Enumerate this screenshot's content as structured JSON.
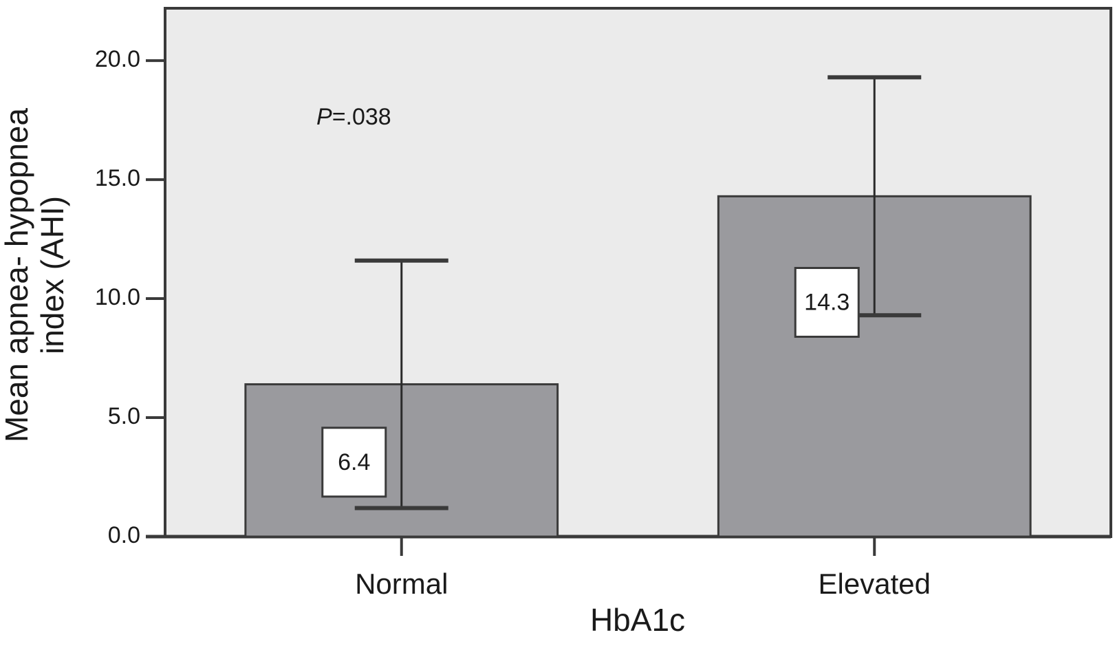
{
  "chart_data": {
    "type": "bar",
    "x_label": "HbA1c",
    "y_label": [
      "Mean apnea- hypopnea",
      "index (AHI)"
    ],
    "annotation": [
      "P",
      "=.038"
    ],
    "categories": [
      "Normal",
      "Elevated"
    ],
    "values": [
      6.4,
      14.3
    ],
    "errors": [
      5.2,
      5.0
    ],
    "color": "#9a9a9e",
    "ylim": [
      0,
      22.2
    ],
    "yticks": [
      {
        "value": 0,
        "label": "0.0"
      },
      {
        "value": 5,
        "label": "5.0"
      },
      {
        "value": 10,
        "label": "10.0"
      },
      {
        "value": 15,
        "label": "15.0"
      },
      {
        "value": 20,
        "label": "20.0"
      }
    ]
  }
}
